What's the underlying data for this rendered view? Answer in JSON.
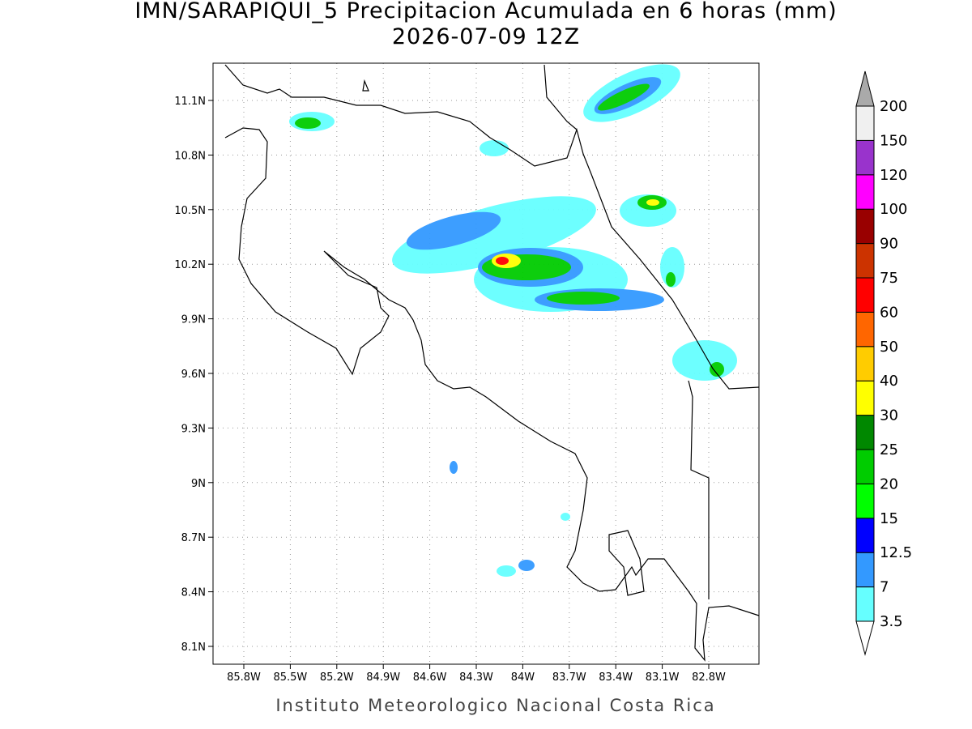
{
  "title": "IMN/SARAPIQUI_5 Precipitacion Acumulada en 6 horas (mm)",
  "subtitle": "2026-07-09 12Z",
  "lat_labels": [
    "11.1N",
    "10.8N",
    "10.5N",
    "10.2N",
    "9.9N",
    "9.6N",
    "9.3N",
    "9N",
    "8.7N",
    "8.4N",
    "8.1N"
  ],
  "lon_labels": [
    "85.8W",
    "85.5W",
    "85.2W",
    "84.9W",
    "84.6W",
    "84.3W",
    "84W",
    "83.7W",
    "83.4W",
    "83.1W",
    "82.8W"
  ],
  "colorbar": {
    "labels": [
      "3.5",
      "7",
      "12.5",
      "15",
      "20",
      "25",
      "30",
      "40",
      "50",
      "60",
      "75",
      "90",
      "100",
      "120",
      "150",
      "200"
    ],
    "colors": [
      "#66ffff",
      "#3399ff",
      "#0000ff",
      "#00ff00",
      "#00cc00",
      "#008800",
      "#ffff00",
      "#ffcc00",
      "#ff6600",
      "#ff0000",
      "#cc3300",
      "#990000",
      "#ff00ff",
      "#9933cc",
      "#f0f0f0"
    ],
    "under_color": "#ffffff",
    "over_color": "#aaaaaa"
  },
  "footer": "Instituto Meteorologico Nacional Costa Rica"
}
